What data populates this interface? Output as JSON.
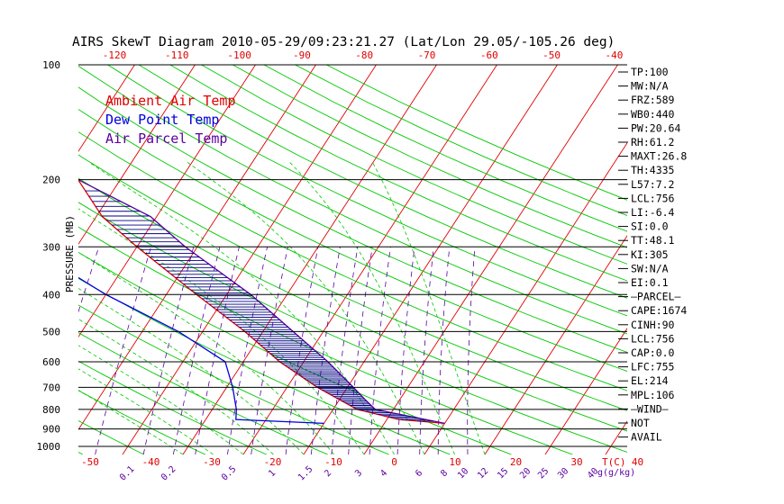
{
  "title": "AIRS SkewT Diagram 2010-05-29/09:23:21.27 (Lat/Lon 29.05/-105.26 deg)",
  "y_axis_label": "PRESSURE (MB)",
  "x_axis_unit_label": "T(C)",
  "mixing_ratio_unit_label": "g(g/kg)",
  "legend": [
    {
      "label": "Ambient Air Temp",
      "color": "#e00000"
    },
    {
      "label": "Dew Point Temp",
      "color": "#0000e0"
    },
    {
      "label": "Air Parcel Temp",
      "color": "#5a00a0"
    }
  ],
  "colors": {
    "isotherm": "#e00000",
    "dry_adiabat": "#00c800",
    "moist_adiabat": "#00c800",
    "mixing_ratio": "#5a00a0",
    "isobar": "#000000",
    "temperature": "#e00000",
    "dewpoint": "#0000e0",
    "parcel": "#5a00a0",
    "cape_hatch": "#000080"
  },
  "indices": [
    "TP:100",
    "MW:N/A",
    "FRZ:589",
    "WB0:440",
    "PW:20.64",
    "RH:61.2",
    "MAXT:26.8",
    "TH:4335",
    "L57:7.2",
    "LCL:756",
    "LI:-6.4",
    "SI:0.0",
    "TT:48.1",
    "KI:305",
    "SW:N/A",
    "EI:0.1",
    "PARCEL",
    "CAPE:1674",
    "CINH:90",
    "LCL:756",
    "CAP:0.0",
    "LFC:755",
    "EL:214",
    "MPL:106",
    "WIND",
    "NOT",
    "AVAIL"
  ],
  "chart_data": {
    "type": "line",
    "title": "AIRS SkewT Diagram 2010-05-29/09:23:21.27 (Lat/Lon 29.05/-105.26 deg)",
    "ylabel": "PRESSURE (MB)",
    "xlabel": "T(C)",
    "y_scale": "log",
    "y_range_hPa": [
      1050,
      100
    ],
    "pressure_levels": [
      100,
      200,
      300,
      400,
      500,
      600,
      700,
      800,
      900,
      1000
    ],
    "pressure_tick_labels": [
      "100",
      "200",
      "300",
      "400",
      "500",
      "600",
      "700",
      "800",
      "900",
      "1000"
    ],
    "top_temperature_ticks": [
      -120,
      -110,
      -100,
      -90,
      -80,
      -70,
      -60,
      -50,
      -40
    ],
    "top_temperature_tick_labels": [
      "-120",
      "-110",
      "-100",
      "-90",
      "-80",
      "-70",
      "-60",
      "-50",
      "-40"
    ],
    "bottom_temperature_ticks": [
      -50,
      -40,
      -30,
      -20,
      -10,
      0,
      10,
      20,
      30,
      40
    ],
    "bottom_temperature_tick_labels": [
      "-50",
      "-40",
      "-30",
      "-20",
      "-10",
      "0",
      "10",
      "20",
      "30",
      "40"
    ],
    "mixing_ratio_lines_gkg": [
      0.1,
      0.2,
      0.5,
      1,
      1.5,
      2,
      3,
      4,
      6,
      8,
      10,
      12,
      15,
      20,
      25,
      30,
      40
    ],
    "mixing_ratio_labels": [
      "0.1",
      "0.2",
      "0.5",
      "1",
      "1.5",
      "2",
      "3",
      "4",
      "6",
      "8",
      "10",
      "12",
      "15",
      "20",
      "25",
      "30",
      "40"
    ],
    "grid": true,
    "legend_position": "top-left",
    "series": [
      {
        "name": "Ambient Air Temp",
        "pressure_hPa": [
          100,
          150,
          200,
          250,
          300,
          400,
          500,
          600,
          700,
          800,
          850,
          870
        ],
        "temperature_C": [
          -72,
          -69,
          -57,
          -49,
          -40,
          -25,
          -13,
          -4,
          5,
          14,
          22,
          30
        ]
      },
      {
        "name": "Dew Point Temp",
        "pressure_hPa": [
          100,
          150,
          250,
          300,
          400,
          500,
          600,
          700,
          800,
          850,
          870
        ],
        "temperature_C": [
          -96,
          -86,
          -70,
          -58,
          -40,
          -24,
          -13,
          -9,
          -6,
          -5,
          10
        ]
      },
      {
        "name": "Air Parcel Temp",
        "pressure_hPa": [
          100,
          150,
          200,
          250,
          300,
          400,
          500,
          600,
          700,
          750,
          800,
          870
        ],
        "temperature_C": [
          -90,
          -71,
          -57,
          -41,
          -32,
          -16,
          -5,
          4,
          11,
          14,
          17,
          30
        ]
      }
    ]
  }
}
